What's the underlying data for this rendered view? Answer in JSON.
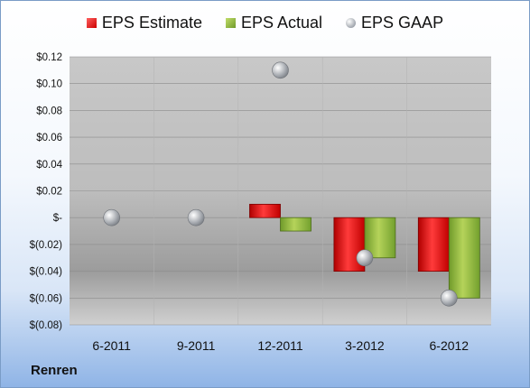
{
  "chart_data": {
    "type": "bar",
    "categories": [
      "6-2011",
      "9-2011",
      "12-2011",
      "3-2012",
      "6-2012"
    ],
    "series": [
      {
        "name": "EPS Estimate",
        "type": "bar",
        "color": "#cc1111",
        "values": [
          null,
          null,
          0.01,
          -0.04,
          -0.04
        ]
      },
      {
        "name": "EPS Actual",
        "type": "bar",
        "color": "#7aa337",
        "values": [
          null,
          null,
          -0.01,
          -0.03,
          -0.06
        ]
      },
      {
        "name": "EPS GAAP",
        "type": "scatter",
        "color": "#a0a4aa",
        "values": [
          0.0,
          0.0,
          0.11,
          -0.03,
          -0.06
        ]
      }
    ],
    "ylim": [
      -0.08,
      0.12
    ],
    "yticks": [
      0.12,
      0.1,
      0.08,
      0.06,
      0.04,
      0.02,
      0.0,
      -0.02,
      -0.04,
      -0.06,
      -0.08
    ],
    "ytick_labels": [
      "$0.12",
      "$0.10",
      "$0.08",
      "$0.06",
      "$0.04",
      "$0.02",
      "$-",
      "$(0.02)",
      "$(0.04)",
      "$(0.06)",
      "$(0.08)"
    ],
    "legend": "top",
    "grid": true
  },
  "legend": {
    "estimate": "EPS Estimate",
    "actual": "EPS Actual",
    "gaap": "EPS GAAP"
  },
  "footer": {
    "company": "Renren"
  }
}
